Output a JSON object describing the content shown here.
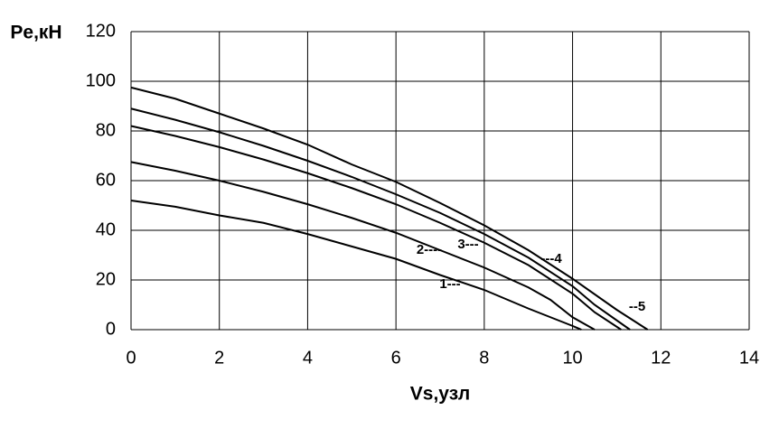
{
  "chart_data": {
    "type": "line",
    "x_label": "Vs,узл",
    "y_label": "Pe,кН",
    "xlim": [
      0,
      14
    ],
    "xticks": [
      0,
      2,
      4,
      6,
      8,
      10,
      12,
      14
    ],
    "ylim": [
      0,
      120
    ],
    "yticks": [
      0,
      20,
      40,
      60,
      80,
      100,
      120
    ],
    "grid": true,
    "series": [
      {
        "color": "#000000",
        "x": [
          0,
          1,
          2,
          3,
          4,
          5,
          6,
          7,
          8,
          9,
          10,
          10.2
        ],
        "values": [
          52,
          49.5,
          46,
          43,
          38.5,
          33.5,
          28.5,
          22,
          16,
          8.5,
          1.5,
          0
        ]
      },
      {
        "color": "#000000",
        "x": [
          0,
          1,
          2,
          3,
          4,
          5,
          6,
          7,
          8,
          9,
          9.5,
          10,
          10.5
        ],
        "values": [
          67.5,
          64,
          60,
          55.5,
          50.5,
          45,
          39,
          32,
          25,
          17,
          12,
          5,
          0
        ]
      },
      {
        "color": "#000000",
        "x": [
          0,
          1,
          2,
          3,
          4,
          5,
          6,
          7,
          8,
          9,
          10,
          10.5,
          11.1
        ],
        "values": [
          82,
          78,
          73.5,
          68.5,
          63,
          57,
          50.5,
          43,
          35,
          26,
          14.5,
          7,
          0
        ]
      },
      {
        "color": "#000000",
        "x": [
          0,
          1,
          2,
          3,
          4,
          5,
          6,
          7,
          8,
          9,
          10,
          10.5,
          11.3
        ],
        "values": [
          89,
          84.5,
          79.5,
          74,
          68,
          61.5,
          54.5,
          47,
          38.5,
          29,
          17.5,
          10,
          0
        ]
      },
      {
        "color": "#000000",
        "x": [
          0,
          1,
          2,
          3,
          4,
          5,
          6,
          7,
          8,
          9,
          10,
          11,
          11.7
        ],
        "values": [
          97.5,
          93,
          87,
          81,
          74.5,
          66.5,
          59.5,
          51,
          42,
          32,
          20.5,
          8,
          0
        ]
      }
    ],
    "annotations": [
      "1---",
      "2----",
      "3---",
      "---4",
      "--5"
    ]
  }
}
